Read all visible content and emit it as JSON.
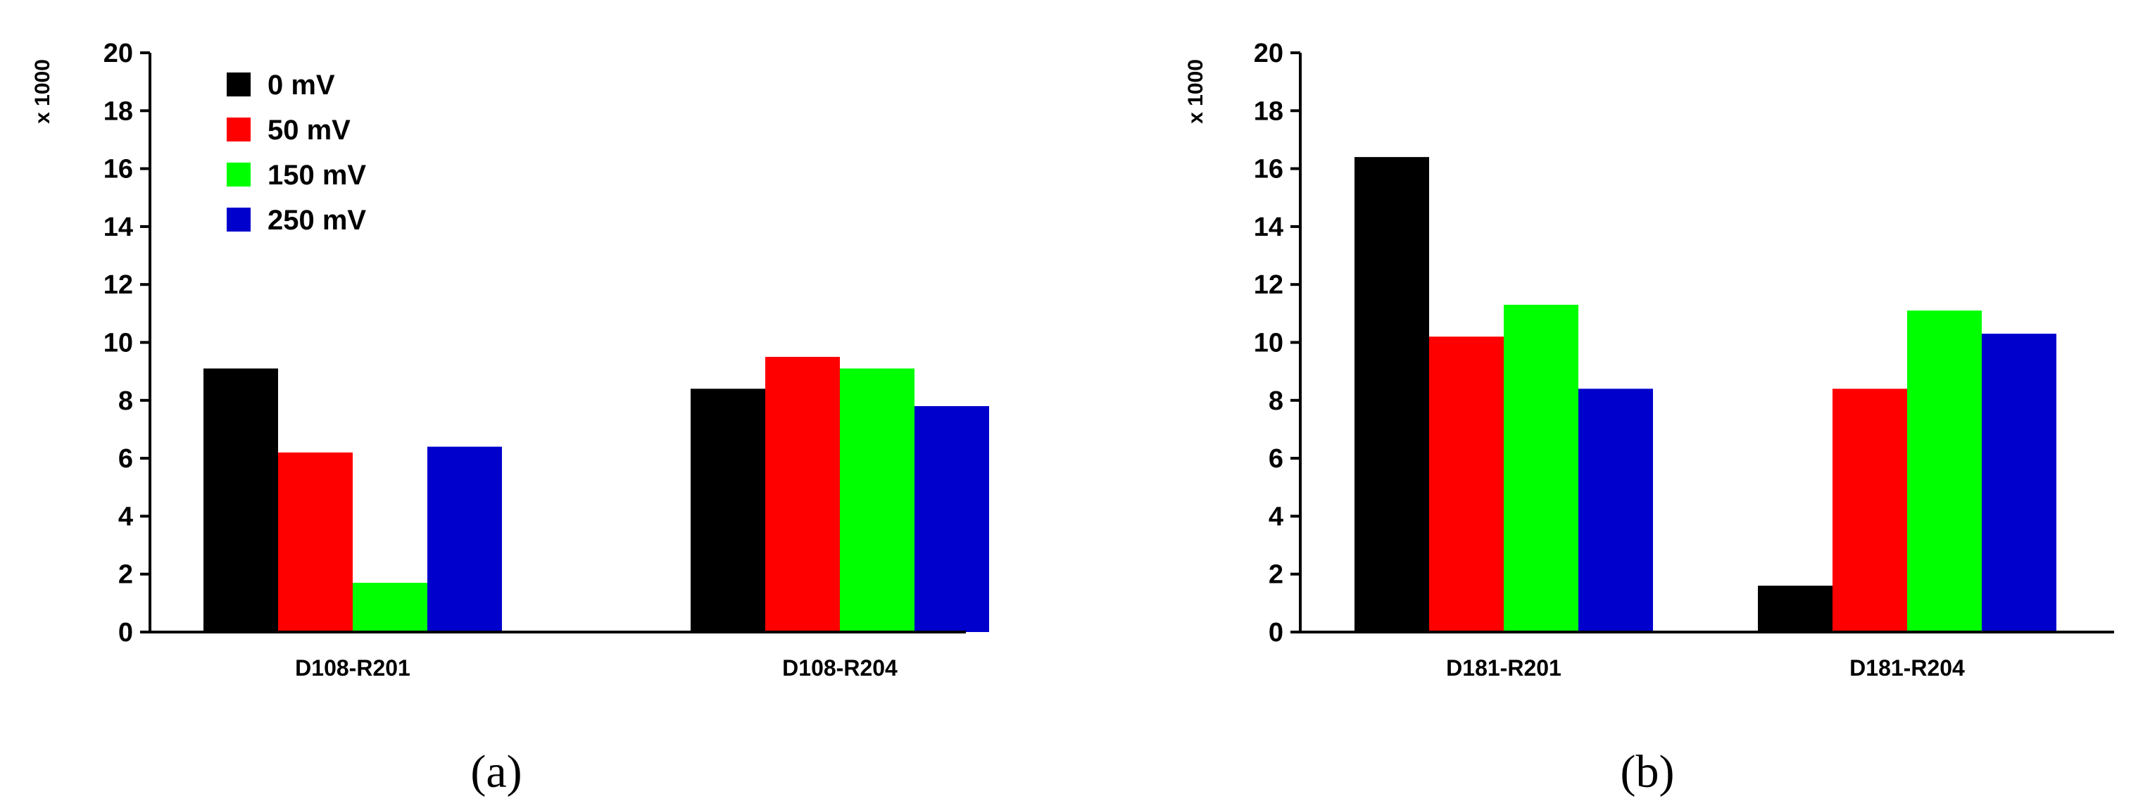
{
  "chart_data": [
    {
      "type": "bar",
      "panel_label": "(a)",
      "unit_label": "x 1000",
      "ylim": [
        0,
        20
      ],
      "yticks": [
        0,
        2,
        4,
        6,
        8,
        10,
        12,
        14,
        16,
        18,
        20
      ],
      "grid": false,
      "legend_position": "top-left",
      "categories": [
        "D108-R201",
        "D108-R204"
      ],
      "series": [
        {
          "name": "0 mV",
          "color": "#000000",
          "values": [
            9.1,
            8.4
          ]
        },
        {
          "name": "50 mV",
          "color": "#ff0000",
          "values": [
            6.2,
            9.5
          ]
        },
        {
          "name": "150 mV",
          "color": "#00ff00",
          "values": [
            1.7,
            9.1
          ]
        },
        {
          "name": "250 mV",
          "color": "#0000cc",
          "values": [
            6.4,
            7.8
          ]
        }
      ]
    },
    {
      "type": "bar",
      "panel_label": "(b)",
      "unit_label": "x 1000",
      "ylim": [
        0,
        20
      ],
      "yticks": [
        0,
        2,
        4,
        6,
        8,
        10,
        12,
        14,
        16,
        18,
        20
      ],
      "grid": false,
      "categories": [
        "D181-R201",
        "D181-R204"
      ],
      "series": [
        {
          "color": "#000000",
          "values": [
            16.4,
            1.6
          ]
        },
        {
          "color": "#ff0000",
          "values": [
            10.2,
            8.4
          ]
        },
        {
          "color": "#00ff00",
          "values": [
            11.3,
            11.1
          ]
        },
        {
          "color": "#0000cc",
          "values": [
            8.4,
            10.3
          ]
        }
      ]
    }
  ]
}
